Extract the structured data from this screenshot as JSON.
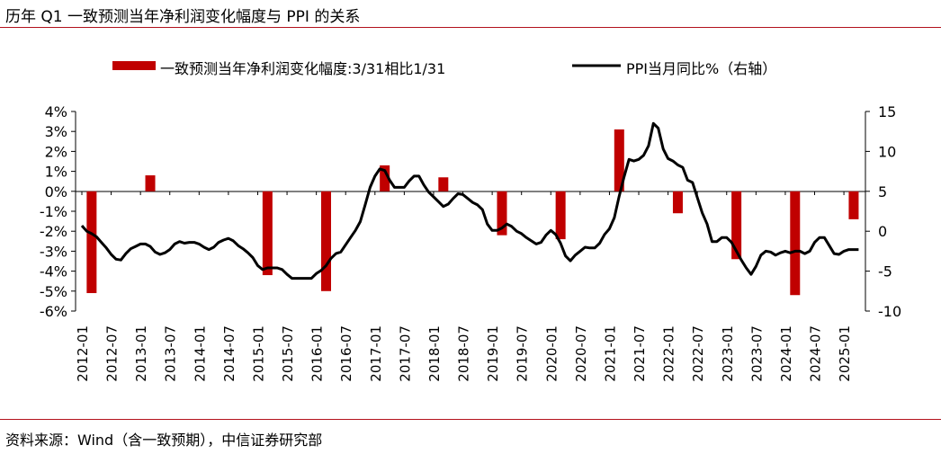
{
  "chart_data": {
    "type": "bar+line",
    "title": "历年 Q1 一致预测当年净利润变化幅度与 PPI 的关系",
    "source": "资料来源：Wind（含一致预期），中信证券研究部",
    "legend": {
      "bar_label": "一致预测当年净利润变化幅度:3/31相比1/31",
      "line_label": "PPI当月同比%（右轴）"
    },
    "left_axis": {
      "min": -6,
      "max": 4,
      "ticks": [
        "4%",
        "3%",
        "2%",
        "1%",
        "0%",
        "-1%",
        "-2%",
        "-3%",
        "-4%",
        "-5%",
        "-6%"
      ]
    },
    "right_axis": {
      "min": -10,
      "max": 15,
      "ticks": [
        "15",
        "10",
        "5",
        "0",
        "-5",
        "-10"
      ]
    },
    "x_labels": [
      "2012-01",
      "2012-07",
      "2013-01",
      "2013-07",
      "2014-01",
      "2014-07",
      "2015-01",
      "2015-07",
      "2016-01",
      "2016-07",
      "2017-01",
      "2017-07",
      "2018-01",
      "2018-07",
      "2019-01",
      "2019-07",
      "2020-01",
      "2020-07",
      "2021-01",
      "2021-07",
      "2022-01",
      "2022-07",
      "2023-01",
      "2023-07",
      "2024-01",
      "2024-07",
      "2025-01"
    ],
    "bars": [
      {
        "date": "2012-03",
        "value": -5.1
      },
      {
        "date": "2013-03",
        "value": 0.8
      },
      {
        "date": "2015-03",
        "value": -4.2
      },
      {
        "date": "2016-03",
        "value": -5.0
      },
      {
        "date": "2017-03",
        "value": 1.3
      },
      {
        "date": "2018-03",
        "value": 0.7
      },
      {
        "date": "2019-03",
        "value": -2.2
      },
      {
        "date": "2020-03",
        "value": -2.4
      },
      {
        "date": "2021-03",
        "value": 3.1
      },
      {
        "date": "2022-03",
        "value": -1.1
      },
      {
        "date": "2023-03",
        "value": -3.4
      },
      {
        "date": "2024-03",
        "value": -5.2
      },
      {
        "date": "2025-03",
        "value": -1.4
      }
    ],
    "ppi_start": "2012-01",
    "ppi": [
      0.7,
      0.0,
      -0.3,
      -0.7,
      -1.4,
      -2.1,
      -2.9,
      -3.5,
      -3.6,
      -2.8,
      -2.2,
      -1.9,
      -1.6,
      -1.6,
      -1.9,
      -2.6,
      -2.9,
      -2.7,
      -2.3,
      -1.6,
      -1.3,
      -1.5,
      -1.4,
      -1.4,
      -1.6,
      -2.0,
      -2.3,
      -2.0,
      -1.4,
      -1.1,
      -0.9,
      -1.2,
      -1.8,
      -2.2,
      -2.7,
      -3.3,
      -4.3,
      -4.8,
      -4.6,
      -4.6,
      -4.6,
      -4.8,
      -5.4,
      -5.9,
      -5.9,
      -5.9,
      -5.9,
      -5.9,
      -5.3,
      -4.9,
      -4.3,
      -3.4,
      -2.8,
      -2.6,
      -1.7,
      -0.8,
      0.1,
      1.2,
      3.3,
      5.5,
      6.9,
      7.8,
      7.6,
      6.4,
      5.5,
      5.5,
      5.5,
      6.3,
      6.9,
      6.9,
      5.8,
      4.9,
      4.3,
      3.7,
      3.1,
      3.4,
      4.1,
      4.7,
      4.6,
      4.1,
      3.6,
      3.3,
      2.7,
      0.9,
      0.1,
      0.1,
      0.4,
      0.9,
      0.6,
      0.0,
      -0.3,
      -0.8,
      -1.2,
      -1.6,
      -1.4,
      -0.5,
      0.1,
      -0.4,
      -1.5,
      -3.1,
      -3.7,
      -3.0,
      -2.5,
      -2.0,
      -2.1,
      -2.1,
      -1.5,
      -0.4,
      0.3,
      1.7,
      4.4,
      6.8,
      9.0,
      8.8,
      9.0,
      9.5,
      10.7,
      13.5,
      12.9,
      10.3,
      9.1,
      8.8,
      8.3,
      8.0,
      6.4,
      6.1,
      4.2,
      2.3,
      0.9,
      -1.3,
      -1.3,
      -0.8,
      -0.8,
      -1.4,
      -2.5,
      -3.6,
      -4.6,
      -5.4,
      -4.4,
      -3.0,
      -2.5,
      -2.6,
      -3.0,
      -2.7,
      -2.5,
      -2.7,
      -2.5,
      -2.5,
      -2.8,
      -2.5,
      -1.4,
      -0.8,
      -0.8,
      -1.8,
      -2.8,
      -2.9,
      -2.5,
      -2.3,
      -2.3,
      -2.3
    ]
  }
}
